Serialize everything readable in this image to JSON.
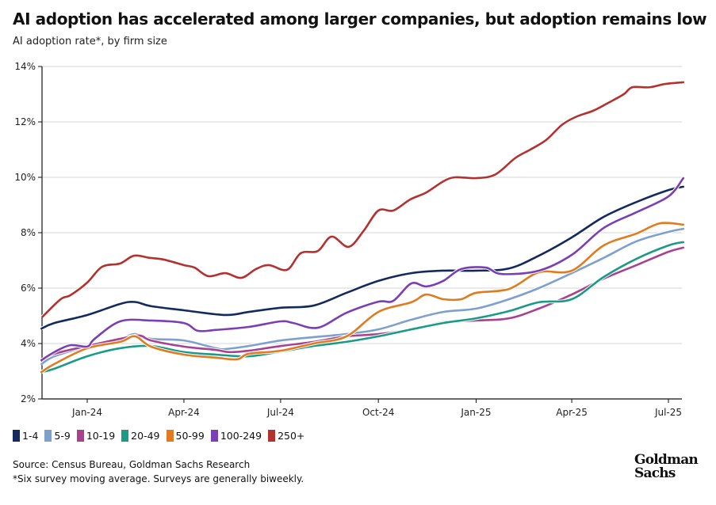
{
  "title": "AI adoption has accelerated among larger companies, but adoption remains low",
  "subtitle": "AI adoption rate*, by firm size",
  "source": "Source: Census Bureau, Goldman Sachs Research",
  "footnote": "*Six survey moving average. Surveys are generally biweekly.",
  "logo": {
    "line1": "Goldman",
    "line2": "Sachs"
  },
  "chart_data": {
    "type": "line",
    "title": "AI adoption has accelerated among larger companies, but adoption remains low",
    "subtitle": "AI adoption rate*, by firm size",
    "xlabel": "",
    "ylabel": "",
    "ylim": [
      2,
      14
    ],
    "xlim": [
      "2023-11-19",
      "2025-07-15"
    ],
    "y_ticks": [
      2,
      4,
      6,
      8,
      10,
      12,
      14
    ],
    "y_tick_labels": [
      "2%",
      "4%",
      "6%",
      "8%",
      "10%",
      "12%",
      "14%"
    ],
    "x_ticks": [
      "2024-01-01",
      "2024-04-01",
      "2024-07-01",
      "2024-10-01",
      "2025-01-01",
      "2025-04-01",
      "2025-07-01"
    ],
    "x_tick_labels": [
      "Jan-24",
      "Apr-24",
      "Jul-24",
      "Oct-24",
      "Jan-25",
      "Apr-25",
      "Jul-25"
    ],
    "grid": "horizontal",
    "legend": "bottom-left",
    "series": [
      {
        "name": "1-4",
        "color": "#14295e",
        "points": [
          [
            "2023-11-19",
            4.54
          ],
          [
            "2023-12-01",
            4.74
          ],
          [
            "2024-01-01",
            5.03
          ],
          [
            "2024-02-01",
            5.43
          ],
          [
            "2024-02-15",
            5.5
          ],
          [
            "2024-03-01",
            5.35
          ],
          [
            "2024-04-01",
            5.2
          ],
          [
            "2024-05-10",
            5.03
          ],
          [
            "2024-06-01",
            5.14
          ],
          [
            "2024-07-01",
            5.29
          ],
          [
            "2024-08-01",
            5.37
          ],
          [
            "2024-09-01",
            5.83
          ],
          [
            "2024-10-01",
            6.26
          ],
          [
            "2024-11-01",
            6.54
          ],
          [
            "2024-12-01",
            6.63
          ],
          [
            "2025-01-01",
            6.63
          ],
          [
            "2025-02-01",
            6.71
          ],
          [
            "2025-03-01",
            7.17
          ],
          [
            "2025-04-01",
            7.83
          ],
          [
            "2025-05-01",
            8.57
          ],
          [
            "2025-06-01",
            9.11
          ],
          [
            "2025-07-01",
            9.54
          ],
          [
            "2025-07-15",
            9.66
          ]
        ]
      },
      {
        "name": "5-9",
        "color": "#7da0cf",
        "points": [
          [
            "2023-11-19",
            3.26
          ],
          [
            "2023-12-01",
            3.54
          ],
          [
            "2024-01-01",
            3.89
          ],
          [
            "2024-02-01",
            4.17
          ],
          [
            "2024-02-15",
            4.34
          ],
          [
            "2024-03-01",
            4.17
          ],
          [
            "2024-04-01",
            4.11
          ],
          [
            "2024-05-01",
            3.83
          ],
          [
            "2024-05-10",
            3.8
          ],
          [
            "2024-06-01",
            3.91
          ],
          [
            "2024-07-01",
            4.11
          ],
          [
            "2024-08-01",
            4.23
          ],
          [
            "2024-09-01",
            4.34
          ],
          [
            "2024-10-01",
            4.51
          ],
          [
            "2024-11-01",
            4.86
          ],
          [
            "2024-12-01",
            5.14
          ],
          [
            "2025-01-01",
            5.26
          ],
          [
            "2025-02-01",
            5.6
          ],
          [
            "2025-03-01",
            6.0
          ],
          [
            "2025-04-01",
            6.54
          ],
          [
            "2025-05-01",
            7.09
          ],
          [
            "2025-06-01",
            7.69
          ],
          [
            "2025-07-01",
            8.03
          ],
          [
            "2025-07-15",
            8.14
          ]
        ]
      },
      {
        "name": "10-19",
        "color": "#a8418f",
        "points": [
          [
            "2023-11-19",
            3.4
          ],
          [
            "2023-12-01",
            3.63
          ],
          [
            "2024-01-01",
            3.91
          ],
          [
            "2024-02-01",
            4.17
          ],
          [
            "2024-02-19",
            4.29
          ],
          [
            "2024-03-01",
            4.11
          ],
          [
            "2024-04-01",
            3.89
          ],
          [
            "2024-05-01",
            3.77
          ],
          [
            "2024-05-14",
            3.69
          ],
          [
            "2024-06-01",
            3.74
          ],
          [
            "2024-07-01",
            3.91
          ],
          [
            "2024-08-01",
            4.06
          ],
          [
            "2024-09-01",
            4.26
          ],
          [
            "2024-10-01",
            4.34
          ],
          [
            "2024-11-01",
            4.51
          ],
          [
            "2024-12-01",
            4.77
          ],
          [
            "2025-01-01",
            4.83
          ],
          [
            "2025-02-01",
            4.91
          ],
          [
            "2025-03-01",
            5.26
          ],
          [
            "2025-04-01",
            5.77
          ],
          [
            "2025-05-01",
            6.34
          ],
          [
            "2025-06-01",
            6.83
          ],
          [
            "2025-07-01",
            7.31
          ],
          [
            "2025-07-15",
            7.46
          ]
        ]
      },
      {
        "name": "20-49",
        "color": "#1a9a87",
        "points": [
          [
            "2023-11-19",
            2.97
          ],
          [
            "2023-12-01",
            3.09
          ],
          [
            "2024-01-01",
            3.54
          ],
          [
            "2024-02-01",
            3.83
          ],
          [
            "2024-03-01",
            3.91
          ],
          [
            "2024-04-01",
            3.69
          ],
          [
            "2024-05-01",
            3.6
          ],
          [
            "2024-06-01",
            3.54
          ],
          [
            "2024-07-01",
            3.71
          ],
          [
            "2024-08-01",
            3.91
          ],
          [
            "2024-09-01",
            4.06
          ],
          [
            "2024-10-01",
            4.26
          ],
          [
            "2024-11-01",
            4.51
          ],
          [
            "2024-12-01",
            4.74
          ],
          [
            "2025-01-01",
            4.91
          ],
          [
            "2025-02-01",
            5.17
          ],
          [
            "2025-03-01",
            5.49
          ],
          [
            "2025-04-01",
            5.6
          ],
          [
            "2025-05-01",
            6.4
          ],
          [
            "2025-06-01",
            7.06
          ],
          [
            "2025-07-01",
            7.54
          ],
          [
            "2025-07-15",
            7.66
          ]
        ]
      },
      {
        "name": "50-99",
        "color": "#e07b1f",
        "points": [
          [
            "2023-11-19",
            2.97
          ],
          [
            "2023-12-01",
            3.26
          ],
          [
            "2024-01-01",
            3.83
          ],
          [
            "2024-02-01",
            4.06
          ],
          [
            "2024-02-15",
            4.26
          ],
          [
            "2024-03-01",
            3.89
          ],
          [
            "2024-04-01",
            3.6
          ],
          [
            "2024-05-01",
            3.49
          ],
          [
            "2024-05-21",
            3.43
          ],
          [
            "2024-06-01",
            3.63
          ],
          [
            "2024-07-01",
            3.74
          ],
          [
            "2024-08-01",
            4.0
          ],
          [
            "2024-09-01",
            4.26
          ],
          [
            "2024-10-01",
            5.14
          ],
          [
            "2024-11-01",
            5.49
          ],
          [
            "2024-11-15",
            5.77
          ],
          [
            "2024-12-01",
            5.6
          ],
          [
            "2024-12-18",
            5.6
          ],
          [
            "2025-01-01",
            5.83
          ],
          [
            "2025-02-01",
            5.97
          ],
          [
            "2025-03-01",
            6.57
          ],
          [
            "2025-04-01",
            6.63
          ],
          [
            "2025-05-01",
            7.54
          ],
          [
            "2025-06-01",
            7.97
          ],
          [
            "2025-06-23",
            8.34
          ],
          [
            "2025-07-15",
            8.29
          ]
        ]
      },
      {
        "name": "100-249",
        "color": "#7b3fb5",
        "points": [
          [
            "2023-11-19",
            3.4
          ],
          [
            "2023-12-01",
            3.69
          ],
          [
            "2023-12-16",
            3.94
          ],
          [
            "2024-01-01",
            3.89
          ],
          [
            "2024-01-08",
            4.17
          ],
          [
            "2024-02-01",
            4.8
          ],
          [
            "2024-03-01",
            4.83
          ],
          [
            "2024-04-01",
            4.74
          ],
          [
            "2024-04-14",
            4.46
          ],
          [
            "2024-05-01",
            4.49
          ],
          [
            "2024-06-01",
            4.6
          ],
          [
            "2024-07-01",
            4.8
          ],
          [
            "2024-07-13",
            4.74
          ],
          [
            "2024-08-05",
            4.57
          ],
          [
            "2024-09-01",
            5.11
          ],
          [
            "2024-10-01",
            5.51
          ],
          [
            "2024-10-15",
            5.54
          ],
          [
            "2024-11-01",
            6.17
          ],
          [
            "2024-11-15",
            6.06
          ],
          [
            "2024-12-01",
            6.26
          ],
          [
            "2024-12-18",
            6.69
          ],
          [
            "2025-01-10",
            6.74
          ],
          [
            "2025-01-25",
            6.51
          ],
          [
            "2025-03-01",
            6.63
          ],
          [
            "2025-04-01",
            7.2
          ],
          [
            "2025-05-01",
            8.17
          ],
          [
            "2025-06-01",
            8.74
          ],
          [
            "2025-07-01",
            9.31
          ],
          [
            "2025-07-15",
            9.97
          ]
        ]
      },
      {
        "name": "250+",
        "color": "#b3312f",
        "points": [
          [
            "2023-11-20",
            4.97
          ],
          [
            "2023-12-07",
            5.6
          ],
          [
            "2023-12-16",
            5.74
          ],
          [
            "2024-01-01",
            6.2
          ],
          [
            "2024-01-15",
            6.77
          ],
          [
            "2024-02-01",
            6.89
          ],
          [
            "2024-02-14",
            7.17
          ],
          [
            "2024-02-29",
            7.09
          ],
          [
            "2024-03-13",
            7.03
          ],
          [
            "2024-04-01",
            6.83
          ],
          [
            "2024-04-11",
            6.74
          ],
          [
            "2024-04-24",
            6.43
          ],
          [
            "2024-05-10",
            6.54
          ],
          [
            "2024-05-25",
            6.37
          ],
          [
            "2024-06-08",
            6.69
          ],
          [
            "2024-06-20",
            6.83
          ],
          [
            "2024-07-07",
            6.66
          ],
          [
            "2024-07-20",
            7.26
          ],
          [
            "2024-08-05",
            7.34
          ],
          [
            "2024-08-18",
            7.86
          ],
          [
            "2024-09-03",
            7.49
          ],
          [
            "2024-09-17",
            8.06
          ],
          [
            "2024-10-01",
            8.8
          ],
          [
            "2024-10-15",
            8.8
          ],
          [
            "2024-10-31",
            9.2
          ],
          [
            "2024-11-15",
            9.45
          ],
          [
            "2024-12-01",
            9.85
          ],
          [
            "2024-12-12",
            10.0
          ],
          [
            "2025-01-01",
            9.97
          ],
          [
            "2025-01-19",
            10.1
          ],
          [
            "2025-02-07",
            10.7
          ],
          [
            "2025-02-21",
            11.0
          ],
          [
            "2025-03-08",
            11.35
          ],
          [
            "2025-03-23",
            11.9
          ],
          [
            "2025-04-06",
            12.2
          ],
          [
            "2025-04-21",
            12.4
          ],
          [
            "2025-05-06",
            12.7
          ],
          [
            "2025-05-20",
            13.0
          ],
          [
            "2025-05-28",
            13.25
          ],
          [
            "2025-06-13",
            13.25
          ],
          [
            "2025-06-28",
            13.37
          ],
          [
            "2025-07-15",
            13.43
          ]
        ]
      }
    ]
  }
}
